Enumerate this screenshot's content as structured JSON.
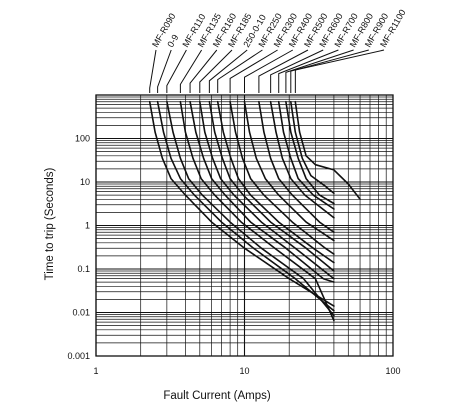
{
  "chart_data": {
    "type": "line",
    "title": "",
    "xlabel": "Fault Current (Amps)",
    "ylabel": "Time to trip (Seconds)",
    "x_scale": "log",
    "y_scale": "log",
    "xlim": [
      1,
      100
    ],
    "ylim": [
      0.001,
      1000
    ],
    "grid": true,
    "legend": "none",
    "x_ticks": [
      {
        "value": 1,
        "label": "1"
      },
      {
        "value": 10,
        "label": "10"
      },
      {
        "value": 100,
        "label": "100"
      }
    ],
    "y_ticks": [
      {
        "value": 0.001,
        "label": "0.001"
      },
      {
        "value": 0.01,
        "label": "0.01"
      },
      {
        "value": 0.1,
        "label": "0.1"
      },
      {
        "value": 1,
        "label": "1"
      },
      {
        "value": 10,
        "label": "10"
      },
      {
        "value": 100,
        "label": "100"
      }
    ],
    "line_color": "#111111",
    "series": [
      {
        "name": "MF-R090",
        "points": [
          [
            2.3,
            700
          ],
          [
            2.5,
            140
          ],
          [
            2.8,
            35
          ],
          [
            3.2,
            12
          ],
          [
            4,
            5
          ],
          [
            6,
            1.2
          ],
          [
            10,
            0.3
          ],
          [
            20,
            0.06
          ],
          [
            40,
            0.014
          ]
        ]
      },
      {
        "name": "0-9",
        "points": [
          [
            2.6,
            700
          ],
          [
            2.85,
            140
          ],
          [
            3.2,
            35
          ],
          [
            3.7,
            12
          ],
          [
            4.6,
            5
          ],
          [
            7,
            1.2
          ],
          [
            11.5,
            0.3
          ],
          [
            22,
            0.06
          ],
          [
            40,
            0.011
          ]
        ]
      },
      {
        "name": "MF-R110",
        "points": [
          [
            3,
            700
          ],
          [
            3.3,
            140
          ],
          [
            3.7,
            35
          ],
          [
            4.2,
            12
          ],
          [
            5.2,
            5
          ],
          [
            8,
            1.2
          ],
          [
            13,
            0.3
          ],
          [
            25,
            0.06
          ],
          [
            40,
            0.0085
          ]
        ]
      },
      {
        "name": "MF-R135",
        "points": [
          [
            3.7,
            700
          ],
          [
            4,
            140
          ],
          [
            4.5,
            35
          ],
          [
            5.1,
            12
          ],
          [
            6.3,
            5
          ],
          [
            9.5,
            1.2
          ],
          [
            16,
            0.3
          ],
          [
            30,
            0.06
          ],
          [
            40,
            0.0065
          ]
        ]
      },
      {
        "name": "MF-R160",
        "points": [
          [
            4.3,
            700
          ],
          [
            4.7,
            140
          ],
          [
            5.3,
            35
          ],
          [
            6,
            12
          ],
          [
            7.4,
            5
          ],
          [
            11,
            1.2
          ],
          [
            19,
            0.3
          ],
          [
            34,
            0.06
          ],
          [
            40,
            0.05
          ]
        ]
      },
      {
        "name": "MF-R185",
        "points": [
          [
            5,
            700
          ],
          [
            5.4,
            140
          ],
          [
            6.1,
            35
          ],
          [
            6.9,
            12
          ],
          [
            8.5,
            5
          ],
          [
            13,
            1.2
          ],
          [
            22,
            0.3
          ],
          [
            40,
            0.06
          ]
        ]
      },
      {
        "name": "250-0-10",
        "points": [
          [
            5.8,
            700
          ],
          [
            6.3,
            140
          ],
          [
            7.1,
            35
          ],
          [
            8,
            12
          ],
          [
            9.8,
            5
          ],
          [
            15,
            1.2
          ],
          [
            26,
            0.3
          ],
          [
            40,
            0.09
          ]
        ]
      },
      {
        "name": "MF-R250",
        "points": [
          [
            6.6,
            700
          ],
          [
            7.2,
            140
          ],
          [
            8.1,
            35
          ],
          [
            9.1,
            12
          ],
          [
            11,
            5
          ],
          [
            17,
            1.2
          ],
          [
            29,
            0.3
          ],
          [
            40,
            0.14
          ]
        ]
      },
      {
        "name": "MF-R300",
        "points": [
          [
            8,
            700
          ],
          [
            8.7,
            140
          ],
          [
            9.7,
            35
          ],
          [
            11,
            12
          ],
          [
            13.5,
            5
          ],
          [
            21,
            1.2
          ],
          [
            35,
            0.3
          ],
          [
            40,
            0.22
          ]
        ]
      },
      {
        "name": "MF-R400",
        "points": [
          [
            10,
            700
          ],
          [
            10.8,
            140
          ],
          [
            12,
            35
          ],
          [
            13.8,
            12
          ],
          [
            17,
            5
          ],
          [
            26,
            1.2
          ],
          [
            40,
            0.45
          ]
        ]
      },
      {
        "name": "MF-R500",
        "points": [
          [
            12.5,
            700
          ],
          [
            13.5,
            140
          ],
          [
            15,
            35
          ],
          [
            17,
            12
          ],
          [
            21,
            5
          ],
          [
            32,
            1.2
          ],
          [
            40,
            0.7
          ]
        ]
      },
      {
        "name": "MF-R600",
        "points": [
          [
            15,
            700
          ],
          [
            16.3,
            140
          ],
          [
            18,
            35
          ],
          [
            20.5,
            12
          ],
          [
            25.5,
            5
          ],
          [
            40,
            1.5
          ]
        ]
      },
      {
        "name": "MF-R700",
        "points": [
          [
            17,
            700
          ],
          [
            18.3,
            140
          ],
          [
            20.5,
            35
          ],
          [
            23,
            12
          ],
          [
            29,
            5
          ],
          [
            40,
            2.4
          ]
        ]
      },
      {
        "name": "MF-R800",
        "points": [
          [
            19,
            700
          ],
          [
            20.5,
            140
          ],
          [
            23,
            35
          ],
          [
            26,
            12
          ],
          [
            32,
            5
          ],
          [
            40,
            3.2
          ]
        ]
      },
      {
        "name": "MF-R900",
        "points": [
          [
            20.5,
            700
          ],
          [
            22,
            140
          ],
          [
            24.5,
            35
          ],
          [
            28,
            14
          ],
          [
            35,
            8
          ],
          [
            40,
            5.5
          ]
        ]
      },
      {
        "name": "MF-R1100",
        "points": [
          [
            22,
            700
          ],
          [
            23.5,
            140
          ],
          [
            26,
            40
          ],
          [
            30,
            25
          ],
          [
            40,
            19
          ],
          [
            50,
            9
          ],
          [
            60,
            4
          ]
        ]
      }
    ]
  }
}
